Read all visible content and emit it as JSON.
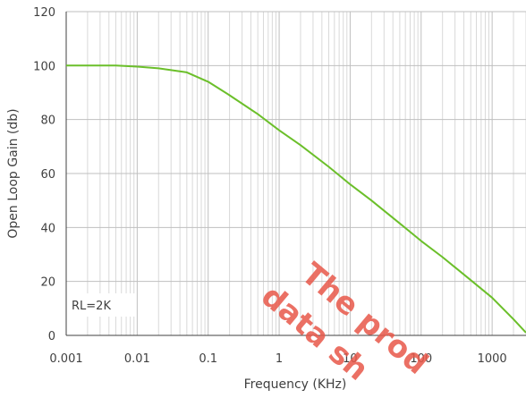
{
  "chart_data": {
    "type": "line",
    "title": "",
    "xlabel": "Frequency (KHz)",
    "ylabel": "Open Loop Gain (db)",
    "x_scale": "log",
    "xlim": [
      0.001,
      3000
    ],
    "ylim": [
      0,
      120
    ],
    "x_ticks": [
      "0.001",
      "0.01",
      "0.1",
      "1",
      "10",
      "100",
      "1000"
    ],
    "y_ticks": [
      "0",
      "20",
      "40",
      "60",
      "80",
      "100",
      "120"
    ],
    "grid": true,
    "legend": "none",
    "annotation": "RL=2K",
    "series": [
      {
        "color": "#6bbf2a",
        "x": [
          0.001,
          0.002,
          0.005,
          0.01,
          0.02,
          0.05,
          0.1,
          0.2,
          0.5,
          1,
          2,
          5,
          10,
          20,
          50,
          100,
          200,
          500,
          1000,
          2000,
          3000
        ],
        "y": [
          100,
          100,
          100,
          99.6,
          99,
          97.5,
          94,
          89,
          82,
          76,
          70.5,
          62.5,
          56,
          50,
          41.5,
          35,
          29,
          20.5,
          14,
          6,
          1
        ]
      }
    ],
    "watermark": [
      "The prod",
      "data sh"
    ]
  }
}
